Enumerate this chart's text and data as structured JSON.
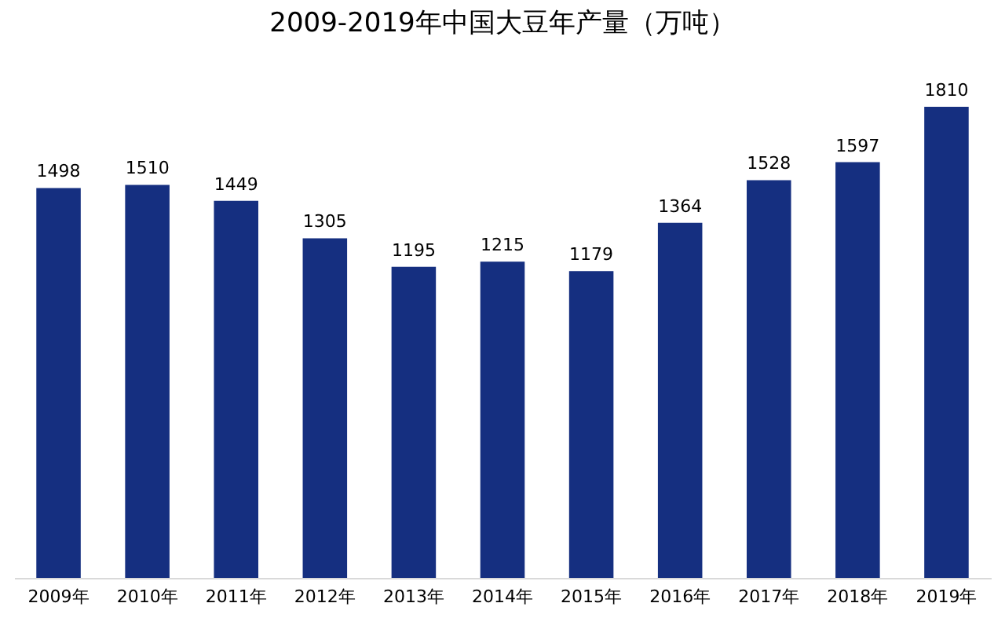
{
  "chart_data": {
    "type": "bar",
    "title": "2009-2019年中国大豆年产量（万吨）",
    "categories": [
      "2009年",
      "2010年",
      "2011年",
      "2012年",
      "2013年",
      "2014年",
      "2015年",
      "2016年",
      "2017年",
      "2018年",
      "2019年"
    ],
    "values": [
      1498,
      1510,
      1449,
      1305,
      1195,
      1215,
      1179,
      1364,
      1528,
      1597,
      1810
    ],
    "color": "#152f80",
    "data_labels": true,
    "tick_labels": "x"
  }
}
